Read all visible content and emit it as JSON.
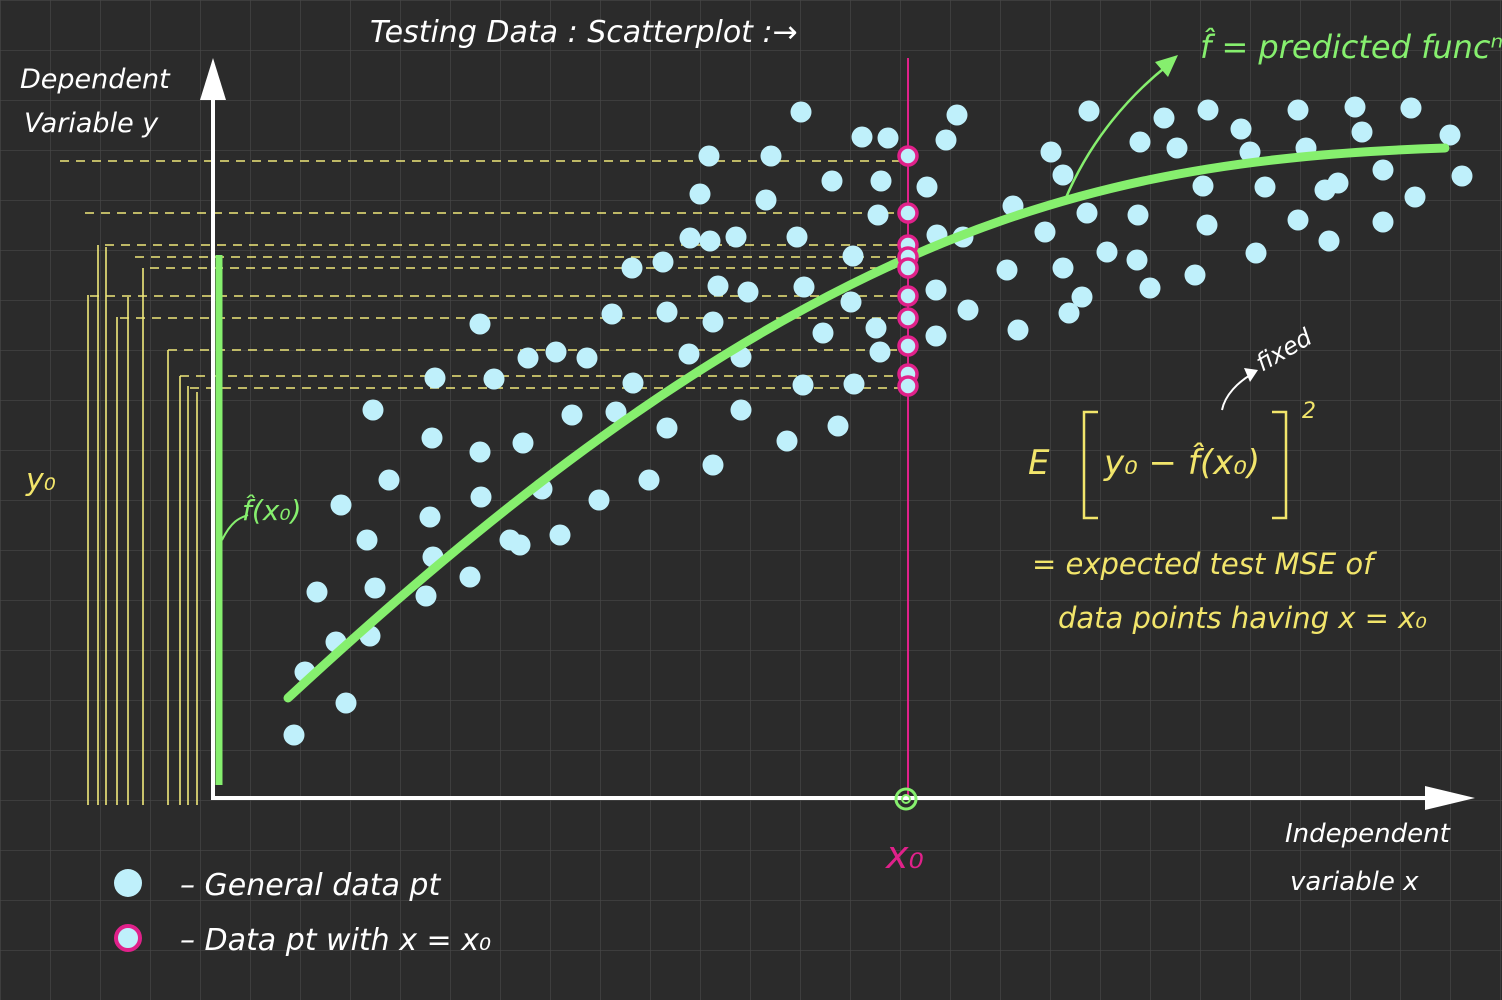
{
  "title": "Testing Data : Scatterplot :→",
  "y_axis_label": [
    "Dependent",
    "Variable  y"
  ],
  "x_axis_label": [
    "Independent",
    "variable  x"
  ],
  "predicted_label": "f̂ = predicted funcⁿ.",
  "fhat_x0_label": "f̂(x₀)",
  "y0_label": "y₀",
  "x0_label": "x₀",
  "fixed_label": "fixed",
  "expectation": {
    "E": "E",
    "inner": "y₀ − f̂(x₀)",
    "power": "2",
    "line1": "= expected test MSE   of",
    "line2": "data points having  x = x₀"
  },
  "legend": {
    "general": "–  General data pt",
    "with_x0": "–  Data pt with  x = x₀"
  },
  "colors": {
    "background": "#2b2b2b",
    "grid": "#4a4a4a",
    "axis": "#ffffff",
    "data_point": "#bff0fb",
    "x0_point_ring": "#e0218a",
    "curve": "#86ef6e",
    "vertical_line": "#e0218a",
    "dashed": "#f0e87a",
    "annotation": "#f2e56b",
    "text": "#ffffff"
  }
}
